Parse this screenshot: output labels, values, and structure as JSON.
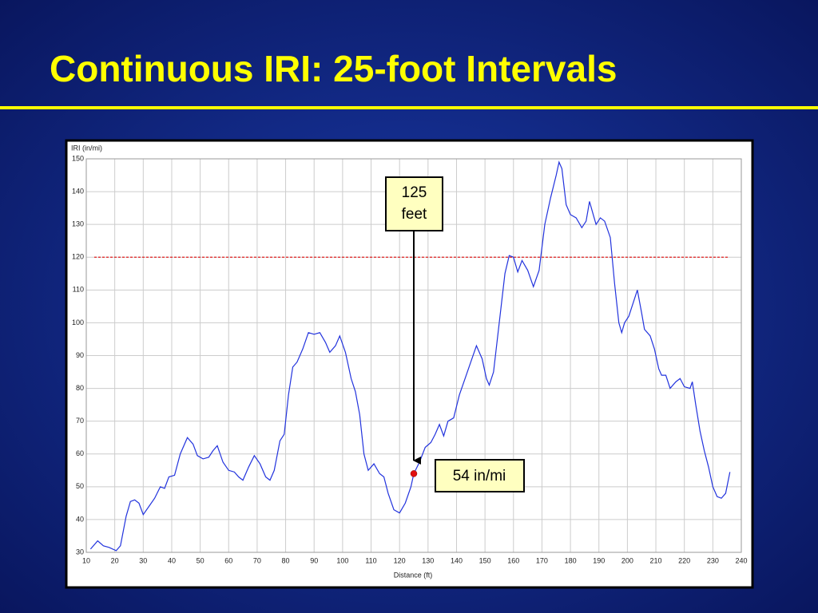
{
  "chart_data": {
    "type": "line",
    "title": "Continuous IRI: 25-foot Intervals",
    "x_label": "Distance (ft)",
    "y_label": "IRI (in/mi)",
    "xlim": [
      10,
      240
    ],
    "ylim": [
      30,
      150
    ],
    "xticks": [
      10,
      20,
      30,
      40,
      50,
      60,
      70,
      80,
      90,
      100,
      110,
      120,
      130,
      140,
      150,
      160,
      170,
      180,
      190,
      200,
      210,
      220,
      230,
      240
    ],
    "yticks": [
      30,
      40,
      50,
      60,
      70,
      80,
      90,
      100,
      110,
      120,
      130,
      140,
      150
    ],
    "grid": true,
    "x": [
      11.5,
      14,
      16,
      18,
      20.5,
      22,
      24,
      25.5,
      27,
      28.5,
      30,
      32,
      34,
      36,
      37.5,
      39,
      41,
      43,
      45.5,
      47.5,
      49,
      51,
      53,
      54.5,
      56,
      58,
      60,
      62,
      63.5,
      65,
      67,
      69,
      71,
      73,
      74.5,
      76,
      78,
      79.5,
      81,
      82.5,
      84,
      86,
      88,
      90,
      92,
      94,
      95.5,
      97.5,
      99,
      101,
      103,
      104.5,
      106,
      107.5,
      109,
      111,
      113,
      114.5,
      116,
      118,
      120,
      122,
      124,
      125,
      127,
      129,
      131,
      132.5,
      134,
      135.5,
      137,
      139,
      141,
      143,
      145,
      147,
      149,
      150.5,
      151.5,
      153,
      155,
      157,
      158.5,
      160,
      161.5,
      163,
      165,
      167,
      169,
      171,
      173,
      175,
      176,
      177,
      178.5,
      180,
      182,
      184,
      185.5,
      186.7,
      188,
      189,
      190.5,
      192,
      194,
      195.5,
      197,
      198,
      199,
      200.5,
      202,
      203.5,
      205,
      206,
      208,
      209.5,
      211,
      212,
      213.5,
      215,
      217,
      218.5,
      220,
      222,
      222.8,
      224,
      225.5,
      227,
      228.5,
      230,
      231.5,
      233,
      234.5,
      236
    ],
    "series": [
      {
        "color": "#2233dd",
        "values": [
          31,
          33.5,
          32,
          31.5,
          30.5,
          32,
          41,
          45.5,
          46,
          45,
          41.5,
          44,
          46.5,
          50,
          49.5,
          53,
          53.5,
          60,
          65,
          63,
          59.5,
          58.5,
          59,
          61,
          62.5,
          57.5,
          55,
          54.5,
          53,
          52,
          56,
          59.5,
          57,
          53,
          52,
          55,
          64,
          66,
          78,
          86.5,
          88,
          92,
          97,
          96.5,
          97,
          94,
          91,
          93,
          96,
          91,
          83,
          79,
          72,
          60,
          55,
          57,
          54,
          53,
          48,
          43,
          42,
          45,
          50,
          54,
          57.5,
          62,
          63.5,
          66,
          69,
          65.5,
          70,
          71,
          78,
          83,
          88,
          93,
          89,
          83,
          81,
          85,
          100,
          115,
          120.5,
          120,
          115.5,
          119,
          116,
          111,
          116,
          130,
          138,
          145,
          149,
          147,
          136,
          133,
          132,
          129,
          131,
          137,
          133,
          130,
          132,
          131,
          126,
          112,
          100,
          97,
          100,
          102,
          106,
          110,
          103,
          98,
          96,
          92,
          86,
          84,
          84,
          80,
          82,
          83,
          80.5,
          80,
          82,
          75,
          67,
          61,
          56,
          50,
          47,
          46.5,
          48,
          54.5
        ]
      }
    ],
    "reference_line": {
      "y": 120,
      "x": [
        12.8,
        235.5
      ],
      "color": "#e02020"
    },
    "callout": {
      "lines": [
        "125",
        "feet"
      ],
      "x": 125,
      "y": 58
    },
    "marker": {
      "x": 125,
      "y": 54,
      "label": "54 in/mi",
      "color": "#e01010"
    }
  }
}
